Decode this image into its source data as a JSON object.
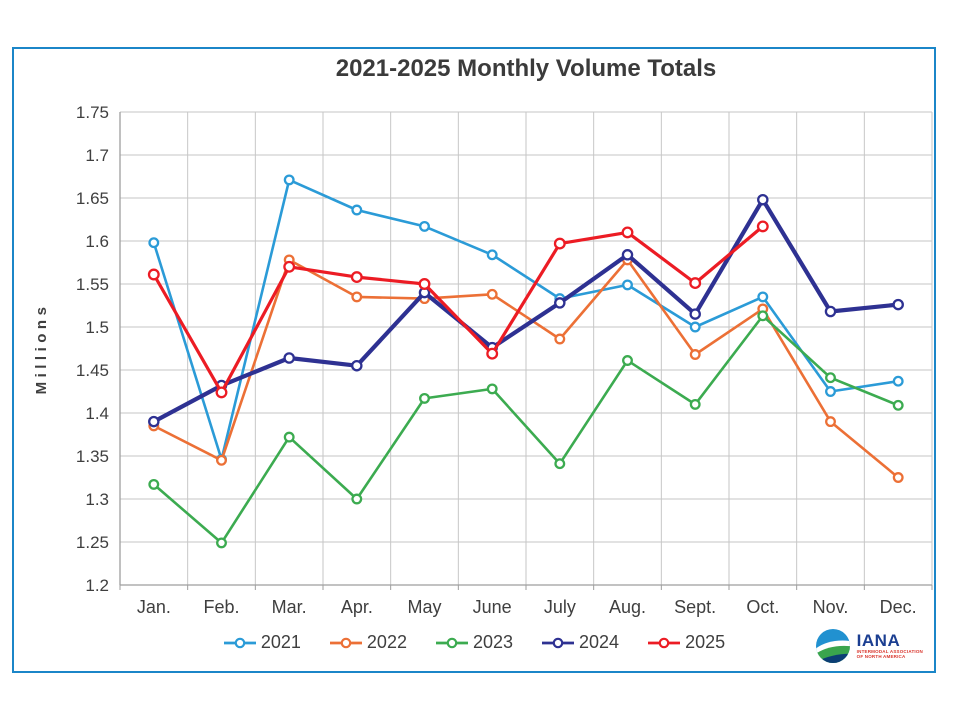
{
  "colors": {
    "border": "#1b86c8",
    "grid": "#c6c6c6",
    "axis": "#9e9e9e",
    "text": "#3f3f3f",
    "title": "#3b3b3b",
    "background": "#ffffff",
    "logo_navy": "#1b3e91",
    "logo_red": "#d9342b",
    "logo_globe_blue": "#2191d0",
    "logo_globe_green": "#3aa54d",
    "logo_globe_dark": "#0c3e74"
  },
  "chart_data": {
    "type": "line",
    "title": "2021-2025 Monthly Volume Totals",
    "xlabel": "",
    "ylabel": "Millions",
    "ylim": [
      1.2,
      1.75
    ],
    "grid": true,
    "legend_position": "bottom",
    "y_ticks": [
      "1.75",
      "1.7",
      "1.65",
      "1.6",
      "1.55",
      "1.5",
      "1.45",
      "1.4",
      "1.35",
      "1.3",
      "1.25",
      "1.2"
    ],
    "categories": [
      "Jan.",
      "Feb.",
      "Mar.",
      "Apr.",
      "May",
      "June",
      "July",
      "Aug.",
      "Sept.",
      "Oct.",
      "Nov.",
      "Dec."
    ],
    "series": [
      {
        "name": "2021",
        "color": "#2b9bd7",
        "width": 2.6,
        "marker_r": 4.3,
        "values": [
          1.598,
          1.346,
          1.671,
          1.636,
          1.617,
          1.584,
          1.533,
          1.549,
          1.5,
          1.535,
          1.425,
          1.437
        ]
      },
      {
        "name": "2022",
        "color": "#ec7036",
        "width": 2.6,
        "marker_r": 4.3,
        "values": [
          1.385,
          1.345,
          1.578,
          1.535,
          1.533,
          1.538,
          1.486,
          1.578,
          1.468,
          1.521,
          1.39,
          1.325
        ]
      },
      {
        "name": "2023",
        "color": "#3cab50",
        "width": 2.6,
        "marker_r": 4.3,
        "values": [
          1.317,
          1.249,
          1.372,
          1.3,
          1.417,
          1.428,
          1.341,
          1.461,
          1.41,
          1.513,
          1.441,
          1.409
        ]
      },
      {
        "name": "2024",
        "color": "#2e3192",
        "width": 4.2,
        "marker_r": 4.6,
        "values": [
          1.39,
          1.432,
          1.464,
          1.455,
          1.54,
          1.476,
          1.528,
          1.584,
          1.515,
          1.648,
          1.518,
          1.526
        ]
      },
      {
        "name": "2025",
        "color": "#ec1c24",
        "width": 3.2,
        "marker_r": 4.8,
        "values": [
          1.561,
          1.424,
          1.57,
          1.558,
          1.55,
          1.469,
          1.597,
          1.61,
          1.551,
          1.617,
          null,
          null
        ]
      }
    ]
  },
  "logo": {
    "name": "IANA",
    "subtext_line1": "INTERMODAL ASSOCIATION",
    "subtext_line2": "OF NORTH AMERICA"
  }
}
